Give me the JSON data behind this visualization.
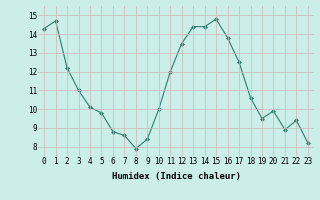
{
  "x": [
    0,
    1,
    2,
    3,
    4,
    5,
    6,
    7,
    8,
    9,
    10,
    11,
    12,
    13,
    14,
    15,
    16,
    17,
    18,
    19,
    20,
    21,
    22,
    23
  ],
  "y": [
    14.3,
    14.7,
    12.2,
    11.0,
    10.1,
    9.8,
    8.8,
    8.6,
    7.9,
    8.4,
    10.0,
    12.0,
    13.5,
    14.4,
    14.4,
    14.8,
    13.8,
    12.5,
    10.6,
    9.5,
    9.9,
    8.9,
    9.4,
    8.2
  ],
  "line_color": "#2e7d6e",
  "marker": "D",
  "marker_size": 2.0,
  "bg_color": "#cceee8",
  "grid_color": "#c8b8b8",
  "ylabel_values": [
    8,
    9,
    10,
    11,
    12,
    13,
    14,
    15
  ],
  "xlabel": "Humidex (Indice chaleur)",
  "xlim": [
    -0.5,
    23.5
  ],
  "ylim": [
    7.5,
    15.5
  ],
  "tick_fontsize": 5.5,
  "xlabel_fontsize": 6.5
}
